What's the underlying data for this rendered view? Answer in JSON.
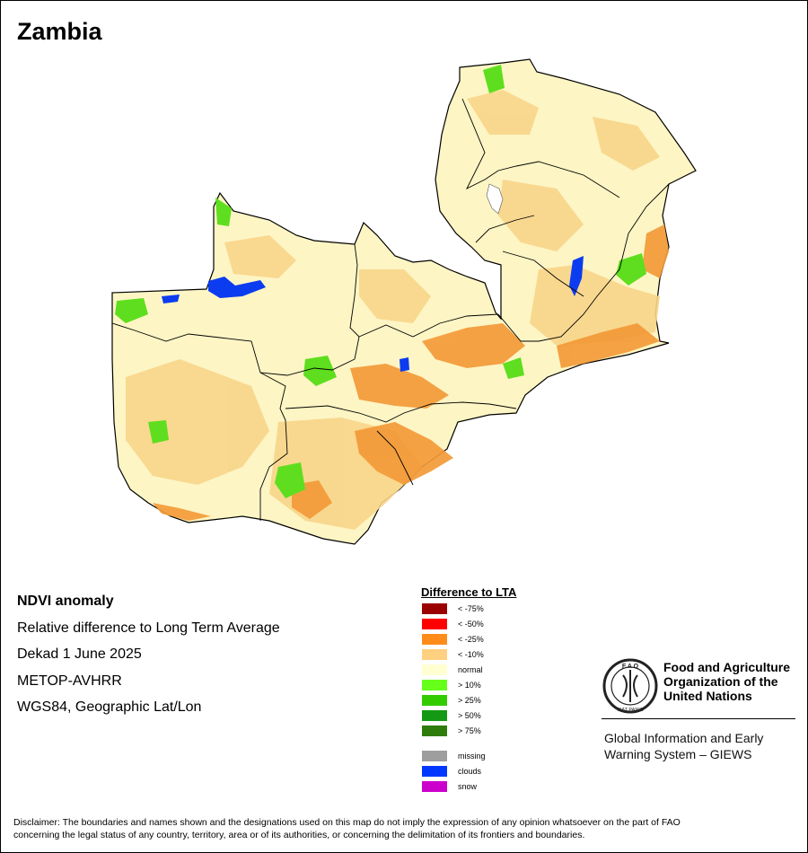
{
  "map_title": "Zambia",
  "info": {
    "heading": "NDVI anomaly",
    "line1": "Relative difference to Long Term Average",
    "line2": "Dekad 1 June 2025",
    "line3": "METOP-AVHRR",
    "line4": "WGS84, Geographic Lat/Lon"
  },
  "legend": {
    "title": "Difference to LTA",
    "classes": [
      {
        "label": "< -75%",
        "color": "#9b0000"
      },
      {
        "label": "< -50%",
        "color": "#ff0000"
      },
      {
        "label": "< -25%",
        "color": "#ff8c1a"
      },
      {
        "label": "< -10%",
        "color": "#ffd080"
      },
      {
        "label": "normal",
        "color": "#ffffd2"
      },
      {
        "label": "> 10%",
        "color": "#66ff1a"
      },
      {
        "label": "> 25%",
        "color": "#33cc00"
      },
      {
        "label": "> 50%",
        "color": "#149914"
      },
      {
        "label": "> 75%",
        "color": "#2e7d0c"
      }
    ],
    "other": [
      {
        "label": "missing",
        "color": "#9e9e9e"
      },
      {
        "label": "clouds",
        "color": "#0038ff"
      },
      {
        "label": "snow",
        "color": "#cc00cc"
      }
    ]
  },
  "fao": {
    "logo_text": "FAO FIAT PANIS",
    "name_line1": "Food and Agriculture",
    "name_line2": "Organization of the",
    "name_line3": "United Nations",
    "giews_line1": "Global Information and Early",
    "giews_line2": "Warning System – GIEWS"
  },
  "disclaimer_line1": "Disclaimer: The boundaries and names shown and the designations used on this map do not imply the expression of any opinion whatsoever on the part of FAO",
  "disclaimer_line2": "concerning the legal status of any country, territory, area or of its authorities, or concerning the delimitation of its frontiers and boundaries."
}
